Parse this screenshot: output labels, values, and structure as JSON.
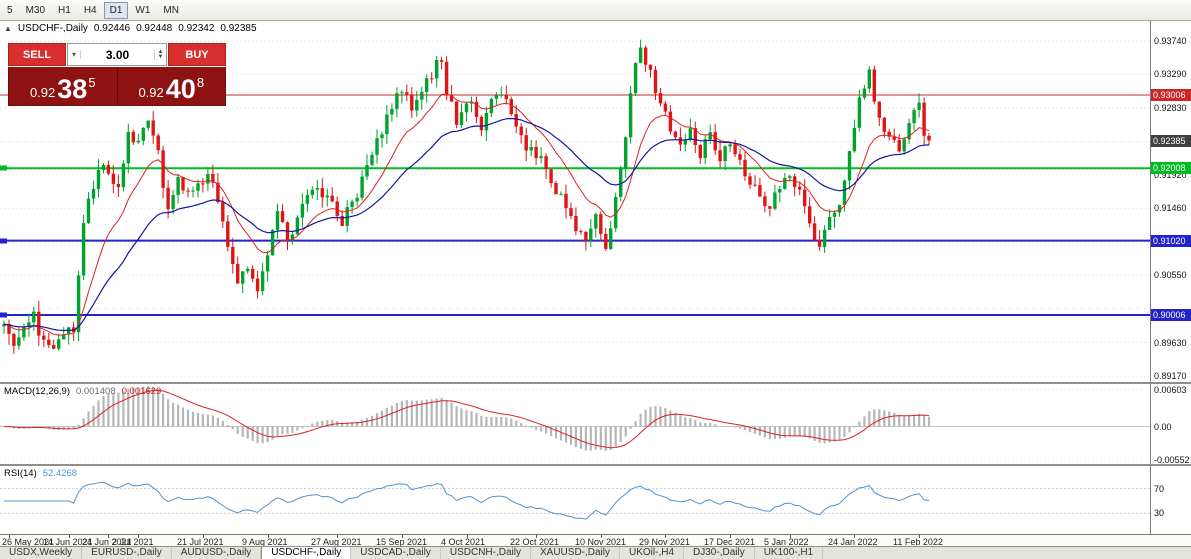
{
  "toolbar": {
    "timeframes": [
      "5",
      "M30",
      "H1",
      "H4",
      "D1",
      "W1",
      "MN"
    ],
    "active": "D1"
  },
  "trade_widget": {
    "collapse_arrow": "▲",
    "sell_label": "SELL",
    "buy_label": "BUY",
    "volume": "3.00",
    "sell_price": {
      "prefix": "0.92",
      "big": "38",
      "sup": "5"
    },
    "buy_price": {
      "prefix": "0.92",
      "big": "40",
      "sup": "8"
    }
  },
  "tabs": {
    "items": [
      "USDX,Weekly",
      "EURUSD-,Daily",
      "AUDUSD-,Daily",
      "USDCHF-,Daily",
      "USDCAD-,Daily",
      "USDCNH-,Daily",
      "XAUUSD-,Daily",
      "UKOil-,H4",
      "DJ30-,Daily",
      "UK100-,H1"
    ],
    "active_index": 3
  },
  "chart_data": {
    "type": "candlestick",
    "symbol_period": "USDCHF-,Daily",
    "ohlc_display": {
      "open": "0.92446",
      "high": "0.92448",
      "low": "0.92342",
      "close": "0.92385"
    },
    "candle_count": 187,
    "last_close": 0.92385,
    "colors": {
      "bull": "#00a32e",
      "bear": "#e01414"
    },
    "anchors": [
      [
        0,
        0.8985
      ],
      [
        2,
        0.8963
      ],
      [
        4,
        0.8992
      ],
      [
        6,
        0.9004
      ],
      [
        8,
        0.8958
      ],
      [
        10,
        0.8948
      ],
      [
        12,
        0.8972
      ],
      [
        14,
        0.8983
      ],
      [
        15,
        0.9055
      ],
      [
        16,
        0.9128
      ],
      [
        18,
        0.9175
      ],
      [
        20,
        0.9208
      ],
      [
        22,
        0.9185
      ],
      [
        23,
        0.9168
      ],
      [
        25,
        0.9252
      ],
      [
        27,
        0.9232
      ],
      [
        29,
        0.9262
      ],
      [
        31,
        0.9222
      ],
      [
        33,
        0.9138
      ],
      [
        35,
        0.9185
      ],
      [
        38,
        0.9168
      ],
      [
        41,
        0.9192
      ],
      [
        43,
        0.9152
      ],
      [
        45,
        0.9098
      ],
      [
        47,
        0.9042
      ],
      [
        49,
        0.9062
      ],
      [
        51,
        0.9032
      ],
      [
        53,
        0.9088
      ],
      [
        55,
        0.9142
      ],
      [
        57,
        0.9098
      ],
      [
        60,
        0.9152
      ],
      [
        63,
        0.9178
      ],
      [
        66,
        0.9152
      ],
      [
        68,
        0.9128
      ],
      [
        71,
        0.9162
      ],
      [
        74,
        0.9218
      ],
      [
        77,
        0.9268
      ],
      [
        80,
        0.9308
      ],
      [
        82,
        0.9278
      ],
      [
        84,
        0.9302
      ],
      [
        86,
        0.9328
      ],
      [
        88,
        0.9352
      ],
      [
        89,
        0.9298
      ],
      [
        91,
        0.9268
      ],
      [
        94,
        0.9288
      ],
      [
        96,
        0.9258
      ],
      [
        98,
        0.9292
      ],
      [
        100,
        0.9308
      ],
      [
        102,
        0.9278
      ],
      [
        104,
        0.9238
      ],
      [
        107,
        0.9222
      ],
      [
        110,
        0.9182
      ],
      [
        113,
        0.9152
      ],
      [
        115,
        0.9118
      ],
      [
        117,
        0.9105
      ],
      [
        119,
        0.913
      ],
      [
        121,
        0.9095
      ],
      [
        123,
        0.916
      ],
      [
        125,
        0.925
      ],
      [
        127,
        0.9345
      ],
      [
        128,
        0.9368
      ],
      [
        130,
        0.933
      ],
      [
        132,
        0.929
      ],
      [
        134,
        0.925
      ],
      [
        136,
        0.9225
      ],
      [
        138,
        0.9255
      ],
      [
        140,
        0.922
      ],
      [
        142,
        0.925
      ],
      [
        144,
        0.9215
      ],
      [
        146,
        0.9235
      ],
      [
        148,
        0.9205
      ],
      [
        150,
        0.9185
      ],
      [
        152,
        0.9162
      ],
      [
        154,
        0.914
      ],
      [
        156,
        0.918
      ],
      [
        158,
        0.9192
      ],
      [
        160,
        0.9168
      ],
      [
        162,
        0.912
      ],
      [
        164,
        0.9102
      ],
      [
        166,
        0.9138
      ],
      [
        168,
        0.9155
      ],
      [
        170,
        0.9215
      ],
      [
        172,
        0.929
      ],
      [
        174,
        0.933
      ],
      [
        176,
        0.927
      ],
      [
        178,
        0.9235
      ],
      [
        180,
        0.923
      ],
      [
        182,
        0.9268
      ],
      [
        184,
        0.929
      ],
      [
        185,
        0.925
      ],
      [
        186,
        0.92385
      ]
    ],
    "date_ticks": [
      {
        "index": 1,
        "label": "26 May 2021"
      },
      {
        "index": 13,
        "label": "14 Jun 2021"
      },
      {
        "index": 21,
        "label": "24 Jun 2021"
      },
      {
        "index": 27,
        "label": "2 Jul 2021"
      },
      {
        "index": 40,
        "label": "21 Jul 2021"
      },
      {
        "index": 53,
        "label": "9 Aug 2021"
      },
      {
        "index": 67,
        "label": "27 Aug 2021"
      },
      {
        "index": 80,
        "label": "15 Sep 2021"
      },
      {
        "index": 93,
        "label": "4 Oct 2021"
      },
      {
        "index": 107,
        "label": "22 Oct 2021"
      },
      {
        "index": 120,
        "label": "10 Nov 2021"
      },
      {
        "index": 133,
        "label": "29 Nov 2021"
      },
      {
        "index": 146,
        "label": "17 Dec 2021"
      },
      {
        "index": 158,
        "label": "5 Jan 2022"
      },
      {
        "index": 171,
        "label": "24 Jan 2022"
      },
      {
        "index": 184,
        "label": "11 Feb 2022"
      }
    ],
    "price_gridlines": [
      {
        "value": 0.9374,
        "label": "0.93740",
        "show": true
      },
      {
        "value": 0.9329,
        "label": "0.93290",
        "show": true
      },
      {
        "value": 0.9283,
        "label": "0.92830",
        "show": true
      },
      {
        "value": 0.9237,
        "label": "0.92370",
        "show": false
      },
      {
        "value": 0.9192,
        "label": "0.91920",
        "show": true
      },
      {
        "value": 0.9146,
        "label": "0.91460",
        "show": true
      },
      {
        "value": 0.91,
        "label": "0.91000",
        "show": false
      },
      {
        "value": 0.9055,
        "label": "0.90550",
        "show": true
      },
      {
        "value": 0.9009,
        "label": "0.90090",
        "show": false
      },
      {
        "value": 0.8963,
        "label": "0.89630",
        "show": true
      },
      {
        "value": 0.8917,
        "label": "0.89170",
        "show": true
      }
    ],
    "hlines": [
      {
        "value": 0.93006,
        "label": "0.93006",
        "color": "#cc2626",
        "width": 1,
        "left_tag": false
      },
      {
        "value": 0.92008,
        "label": "0.92008",
        "color": "#00bb22",
        "width": 2,
        "left_tag": true
      },
      {
        "value": 0.9102,
        "label": "0.91020",
        "color": "#2323cc",
        "width": 2,
        "left_tag": true
      },
      {
        "value": 0.90006,
        "label": "0.90006",
        "color": "#2323cc",
        "width": 2,
        "left_tag": true
      }
    ],
    "current_price_label": {
      "value": 0.92385,
      "label": "0.92385",
      "bg": "#3f3f3f"
    },
    "moving_averages": [
      {
        "name": "ma-fast",
        "period": 12,
        "color": "#e02020",
        "width": 1
      },
      {
        "name": "ma-slow",
        "period": 30,
        "color": "#16169e",
        "width": 1.2
      }
    ],
    "indicators": {
      "macd": {
        "label": "MACD(12,26,9)",
        "fast": 12,
        "slow": 26,
        "signal": 9,
        "value_main": "0.001408",
        "value_signal": "0.001629",
        "scale_top": 0.00603,
        "scale_bottom": -0.00552,
        "scale_labels": [
          "0.00603",
          "0.00",
          "-0.00552"
        ]
      },
      "rsi": {
        "label": "RSI(14)",
        "period": 14,
        "value": "52.4268",
        "levels": [
          70,
          30
        ]
      }
    }
  }
}
